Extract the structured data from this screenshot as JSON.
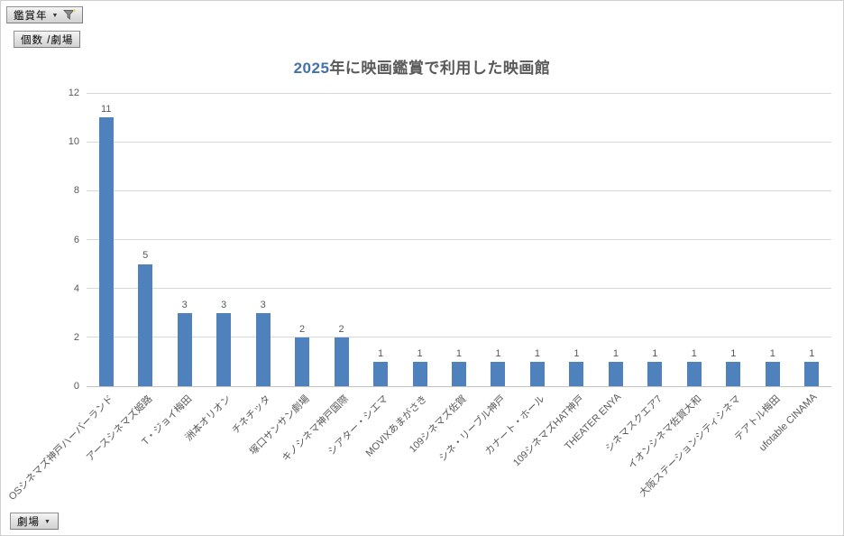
{
  "field_buttons": {
    "filter_year": {
      "label": "鑑賞年",
      "state": "filter-applied"
    },
    "value_field": {
      "label": "個数 /劇場"
    },
    "category_field": {
      "label": "劇場"
    }
  },
  "chart_data": {
    "type": "bar",
    "title": "2025年に映画鑑賞で利用した映画館",
    "title_highlight": "2025",
    "title_rest": "年に映画鑑賞で利用した映画館",
    "categories": [
      "OSシネマズ神戸ハーバーランド",
      "アースシネマズ姫路",
      "T・ジョイ梅田",
      "洲本オリオン",
      "チネチッタ",
      "塚口サンサン劇場",
      "キノシネマ神戸国際",
      "シアター・シエマ",
      "MOVIXあまがさき",
      "109シネマズ佐賀",
      "シネ・リーブル神戸",
      "カナート・ホール",
      "109シネマズHAT神戸",
      "THEATER ENYA",
      "シネマスクエア7",
      "イオンシネマ佐賀大和",
      "大阪ステーションシティシネマ",
      "テアトル梅田",
      "ufotable CINAMA"
    ],
    "values": [
      11,
      5,
      3,
      3,
      3,
      2,
      2,
      1,
      1,
      1,
      1,
      1,
      1,
      1,
      1,
      1,
      1,
      1,
      1
    ],
    "xlabel": "",
    "ylabel": "",
    "ylim": [
      0,
      12
    ],
    "y_ticks": [
      0,
      2,
      4,
      6,
      8,
      10,
      12
    ],
    "grid": "horizontal",
    "legend": "none",
    "data_labels": true,
    "bar_color": "#4F81BD",
    "gridline_color": "#D9D9D9",
    "axis_line_color": "#C3C3C3",
    "text_color": "#595959",
    "title_color": "#595959",
    "title_year_color": "#4472A8"
  }
}
